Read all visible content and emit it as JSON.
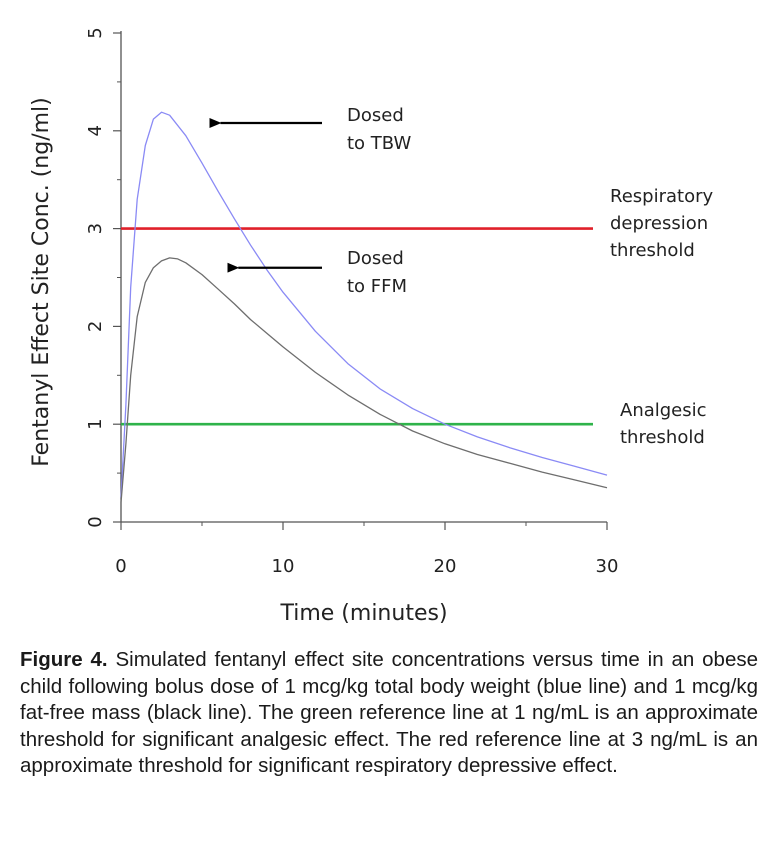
{
  "chart_data": {
    "type": "line",
    "xlabel": "Time (minutes)",
    "ylabel": "Fentanyl Effect Site Conc. (ng/ml)",
    "xlim": [
      0,
      30
    ],
    "ylim": [
      0,
      5
    ],
    "x_ticks": [
      0,
      10,
      20,
      30
    ],
    "y_ticks": [
      0,
      1,
      2,
      3,
      4,
      5
    ],
    "grid": false,
    "series": [
      {
        "key": "tbw",
        "color": "#8a8af5",
        "points": [
          [
            0,
            0.25
          ],
          [
            0.3,
            1.2
          ],
          [
            0.6,
            2.4
          ],
          [
            1,
            3.3
          ],
          [
            1.5,
            3.85
          ],
          [
            2,
            4.12
          ],
          [
            2.5,
            4.19
          ],
          [
            3,
            4.16
          ],
          [
            4,
            3.95
          ],
          [
            5,
            3.67
          ],
          [
            6,
            3.38
          ],
          [
            7,
            3.1
          ],
          [
            8,
            2.83
          ],
          [
            9,
            2.58
          ],
          [
            10,
            2.35
          ],
          [
            12,
            1.95
          ],
          [
            14,
            1.62
          ],
          [
            16,
            1.36
          ],
          [
            18,
            1.16
          ],
          [
            20,
            1.0
          ],
          [
            22,
            0.87
          ],
          [
            24,
            0.76
          ],
          [
            26,
            0.66
          ],
          [
            28,
            0.57
          ],
          [
            30,
            0.48
          ]
        ]
      },
      {
        "key": "ffm",
        "color": "#6e6e6e",
        "points": [
          [
            0,
            0.2
          ],
          [
            0.3,
            0.8
          ],
          [
            0.6,
            1.5
          ],
          [
            1,
            2.1
          ],
          [
            1.5,
            2.45
          ],
          [
            2,
            2.6
          ],
          [
            2.5,
            2.67
          ],
          [
            3,
            2.7
          ],
          [
            3.5,
            2.69
          ],
          [
            4,
            2.65
          ],
          [
            5,
            2.53
          ],
          [
            6,
            2.38
          ],
          [
            7,
            2.23
          ],
          [
            8,
            2.07
          ],
          [
            9,
            1.93
          ],
          [
            10,
            1.79
          ],
          [
            12,
            1.53
          ],
          [
            14,
            1.3
          ],
          [
            16,
            1.1
          ],
          [
            18,
            0.93
          ],
          [
            20,
            0.8
          ],
          [
            22,
            0.69
          ],
          [
            24,
            0.6
          ],
          [
            26,
            0.51
          ],
          [
            28,
            0.43
          ],
          [
            30,
            0.35
          ]
        ]
      }
    ],
    "reference_lines": [
      {
        "key": "respiratory",
        "y": 3,
        "color": "#e0202a",
        "label": [
          "Respiratory",
          "depression",
          "threshold"
        ]
      },
      {
        "key": "analgesic",
        "y": 1,
        "color": "#2fb34a",
        "label": [
          "Analgesic",
          "threshold"
        ]
      }
    ],
    "annotations": [
      {
        "key": "tbw",
        "lines": [
          "Dosed",
          "to TBW"
        ],
        "arrow_to": [
          5.4,
          4.08
        ]
      },
      {
        "key": "ffm",
        "lines": [
          "Dosed",
          "to FFM"
        ],
        "arrow_to": [
          6.5,
          2.6
        ]
      }
    ]
  },
  "caption": {
    "label": "Figure 4.",
    "text": " Simulated fentanyl effect site concentrations versus time in an obese child following bolus dose of 1 mcg/kg total body weight (blue line) and 1 mcg/kg fat-free mass (black line). The green reference line at 1 ng/mL is an approximate threshold for significant analgesic effect. The red reference line at 3 ng/mL is an approximate threshold for significant respiratory depressive effect."
  }
}
